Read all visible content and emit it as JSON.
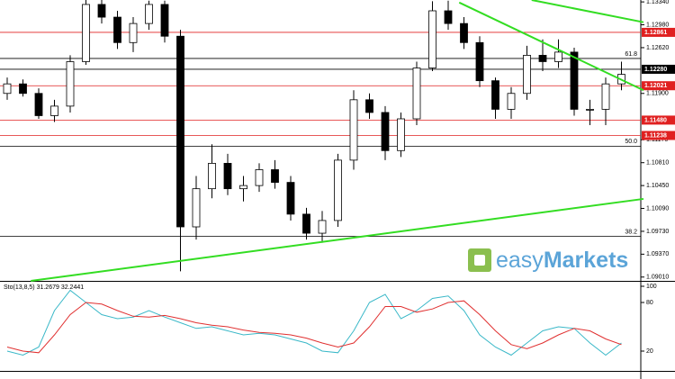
{
  "chart_data": [
    {
      "type": "candlestick",
      "x": [
        0,
        1,
        2,
        3,
        4,
        5,
        6,
        7,
        8,
        9,
        10,
        11,
        12,
        13,
        14,
        15,
        16,
        17,
        18,
        19,
        20,
        21,
        22,
        23,
        24,
        25,
        26,
        27,
        28,
        29,
        30,
        31,
        32,
        33,
        34,
        35,
        36,
        37,
        38,
        39
      ],
      "open": [
        1.119,
        1.1205,
        1.119,
        1.1155,
        1.117,
        1.124,
        1.133,
        1.131,
        1.127,
        1.13,
        1.133,
        1.128,
        1.098,
        1.104,
        1.108,
        1.104,
        1.1045,
        1.107,
        1.105,
        1.1,
        1.097,
        1.099,
        1.1085,
        1.118,
        1.116,
        1.11,
        1.115,
        1.123,
        1.132,
        1.13,
        1.127,
        1.121,
        1.1165,
        1.119,
        1.125,
        1.124,
        1.1255,
        1.1165,
        1.1165,
        1.1205
      ],
      "high": [
        1.1215,
        1.1212,
        1.1198,
        1.118,
        1.125,
        1.134,
        1.1345,
        1.132,
        1.131,
        1.1336,
        1.1336,
        1.129,
        1.106,
        1.111,
        1.1095,
        1.106,
        1.108,
        1.1085,
        1.106,
        1.101,
        1.1005,
        1.1095,
        1.1195,
        1.119,
        1.117,
        1.116,
        1.124,
        1.1335,
        1.1336,
        1.131,
        1.128,
        1.1215,
        1.12,
        1.1265,
        1.1275,
        1.1275,
        1.1262,
        1.118,
        1.1215,
        1.124
      ],
      "low": [
        1.118,
        1.1185,
        1.115,
        1.1145,
        1.116,
        1.1235,
        1.13,
        1.126,
        1.1255,
        1.129,
        1.127,
        1.091,
        1.096,
        1.1025,
        1.103,
        1.102,
        1.1035,
        1.104,
        1.099,
        1.096,
        1.0955,
        1.098,
        1.107,
        1.115,
        1.1085,
        1.109,
        1.114,
        1.1225,
        1.129,
        1.126,
        1.12,
        1.115,
        1.115,
        1.118,
        1.1225,
        1.123,
        1.1155,
        1.114,
        1.114,
        1.1195
      ],
      "close": [
        1.1205,
        1.119,
        1.1155,
        1.117,
        1.124,
        1.133,
        1.131,
        1.127,
        1.13,
        1.133,
        1.128,
        1.098,
        1.104,
        1.108,
        1.104,
        1.1045,
        1.107,
        1.105,
        1.1,
        1.097,
        1.099,
        1.1085,
        1.118,
        1.116,
        1.11,
        1.115,
        1.123,
        1.132,
        1.13,
        1.127,
        1.121,
        1.1165,
        1.119,
        1.125,
        1.124,
        1.1255,
        1.1165,
        1.1165,
        1.1205,
        1.122
      ],
      "ylim": [
        1.0895,
        1.1337
      ],
      "yticks": [
        {
          "value": 1.1334,
          "label": "1.13340"
        },
        {
          "value": 1.1298,
          "label": "1.12980"
        },
        {
          "value": 1.1262,
          "label": "1.12620"
        },
        {
          "value": 1.119,
          "label": "1.11900"
        },
        {
          "value": 1.1117,
          "label": "1.11170"
        },
        {
          "value": 1.1081,
          "label": "1.10810"
        },
        {
          "value": 1.1045,
          "label": "1.10450"
        },
        {
          "value": 1.1009,
          "label": "1.10090"
        },
        {
          "value": 1.0973,
          "label": "1.09730"
        },
        {
          "value": 1.0937,
          "label": "1.09370"
        },
        {
          "value": 1.0901,
          "label": "1.09010"
        }
      ],
      "levels": [
        {
          "value": 1.12861,
          "label": "1.12861",
          "color": "#e02020"
        },
        {
          "value": 1.1228,
          "label": "1.12280",
          "color": "#000000"
        },
        {
          "value": 1.12021,
          "label": "1.12021",
          "color": "#e02020"
        },
        {
          "value": 1.1148,
          "label": "1.11480",
          "color": "#e02020"
        },
        {
          "value": 1.11238,
          "label": "1.11238",
          "color": "#e02020"
        }
      ],
      "fibo": [
        {
          "value": 1.1245,
          "label": "61.8"
        },
        {
          "value": 1.1107,
          "label": "50.0"
        },
        {
          "value": 1.0965,
          "label": "38.2"
        }
      ],
      "trendlines": [
        {
          "from": [
            1.5,
            1.0895
          ],
          "to": [
            40.4,
            1.1024
          ]
        },
        {
          "from": [
            28.7,
            1.1333
          ],
          "to": [
            40.4,
            1.1195
          ]
        },
        {
          "from": [
            33.3,
            1.1337
          ],
          "to": [
            40.4,
            1.1302
          ]
        }
      ],
      "trend_color": "#33dd22",
      "watermark": "easy",
      "watermark_bold": "Markets"
    },
    {
      "type": "line",
      "title": "Sto(13,8,5) 31.2679 32.2441",
      "x": [
        0,
        1,
        2,
        3,
        4,
        5,
        6,
        7,
        8,
        9,
        10,
        11,
        12,
        13,
        14,
        15,
        16,
        17,
        18,
        19,
        20,
        21,
        22,
        23,
        24,
        25,
        26,
        27,
        28,
        29,
        30,
        31,
        32,
        33,
        34,
        35,
        36,
        37,
        38,
        39
      ],
      "series": [
        {
          "name": "main",
          "color": "#3ab8c8",
          "values": [
            20,
            15,
            25,
            70,
            95,
            80,
            65,
            60,
            62,
            70,
            62,
            55,
            48,
            50,
            45,
            40,
            42,
            40,
            35,
            30,
            20,
            18,
            45,
            80,
            90,
            60,
            70,
            85,
            88,
            70,
            40,
            25,
            15,
            30,
            45,
            50,
            48,
            30,
            15,
            30
          ]
        },
        {
          "name": "signal",
          "color": "#e03030",
          "values": [
            25,
            20,
            18,
            40,
            65,
            80,
            78,
            70,
            63,
            62,
            64,
            60,
            55,
            52,
            50,
            46,
            43,
            42,
            40,
            36,
            30,
            25,
            30,
            50,
            75,
            75,
            68,
            72,
            80,
            82,
            65,
            45,
            28,
            23,
            30,
            40,
            48,
            45,
            35,
            28
          ]
        }
      ],
      "ylim": [
        0,
        100
      ],
      "yticks": [
        100,
        80,
        20
      ]
    }
  ]
}
